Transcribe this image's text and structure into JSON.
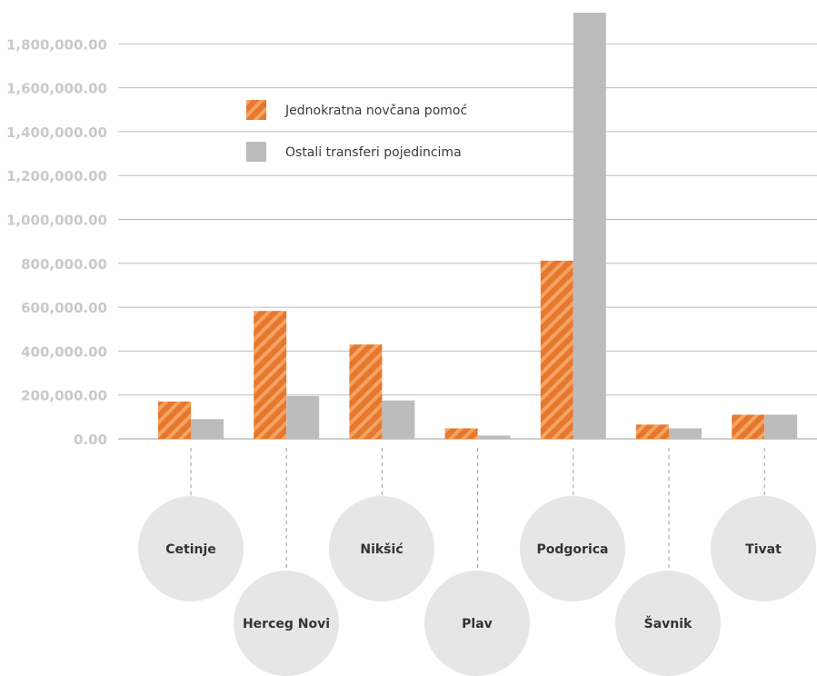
{
  "chart_data": {
    "type": "bar",
    "categories": [
      "Cetinje",
      "Herceg Novi",
      "Nikšić",
      "Plav",
      "Podgorica",
      "Šavnik",
      "Tivat"
    ],
    "series": [
      {
        "name": "Jednokratna novčana pomoć",
        "values": [
          170000,
          583000,
          430000,
          48000,
          812000,
          65000,
          110000
        ]
      },
      {
        "name": "Ostali transferi pojedincima",
        "values": [
          90000,
          195000,
          175000,
          15000,
          1950000,
          48000,
          110000
        ]
      }
    ],
    "ylim": [
      0,
      1950000
    ],
    "yticks": [
      "0.00",
      "200,000.00",
      "400,000.00",
      "600,000.00",
      "800,000.00",
      "1,000,000.00",
      "1,200,000.00",
      "1,400,000.00",
      "1,600,000.00",
      "1,800,000.00"
    ],
    "ytick_values": [
      0,
      200000,
      400000,
      600000,
      800000,
      1000000,
      1200000,
      1400000,
      1600000,
      1800000
    ],
    "title": "",
    "xlabel": "",
    "ylabel": "",
    "grid": true,
    "legend_position": "top-left"
  },
  "colors": {
    "series1": "#e8772e",
    "series1_stripe": "#f3a463",
    "series2": "#bcbcbd",
    "grid": "#bdbdbd",
    "circle": "#e6e6e7"
  }
}
